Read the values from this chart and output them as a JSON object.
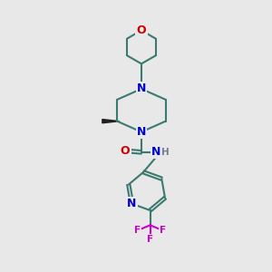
{
  "bg_color": "#e8e8e8",
  "atom_colors": {
    "C": "#3a7a70",
    "N": "#0000cc",
    "O": "#cc0000",
    "F": "#cc00cc",
    "H": "#708090"
  },
  "bond_color": "#3a7a70",
  "bond_lw": 1.5,
  "fs": 9,
  "fs_small": 7.5
}
